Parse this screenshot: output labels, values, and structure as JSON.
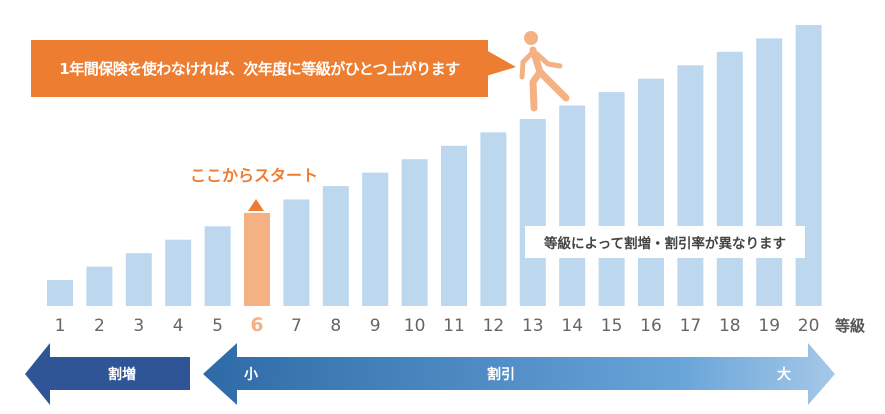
{
  "callout": "1年間保険を使わなければ、次年度に等級がひとつ上がります",
  "start_label": "ここからスタート",
  "info_box": "等級によって割増・割引率が異なります",
  "arrows": {
    "surcharge": "割増",
    "discount": "割引",
    "small": "小",
    "large": "大"
  },
  "colors": {
    "bar": "#bdd7ee",
    "highlight": "#f4b183",
    "accent": "#ed7d31",
    "surcharge": "#2f5597",
    "label": "#666666"
  },
  "chart_data": {
    "type": "bar",
    "title": "",
    "xlabel": "等級",
    "ylabel": "",
    "categories": [
      "1",
      "2",
      "3",
      "4",
      "5",
      "6",
      "7",
      "8",
      "9",
      "10",
      "11",
      "12",
      "13",
      "14",
      "15",
      "16",
      "17",
      "18",
      "19",
      "20"
    ],
    "values": [
      1,
      2,
      3,
      4,
      5,
      6,
      7,
      8,
      9,
      10,
      11,
      12,
      13,
      14,
      15,
      16,
      17,
      18,
      19,
      20
    ],
    "highlight_category": "6",
    "grid": false
  }
}
